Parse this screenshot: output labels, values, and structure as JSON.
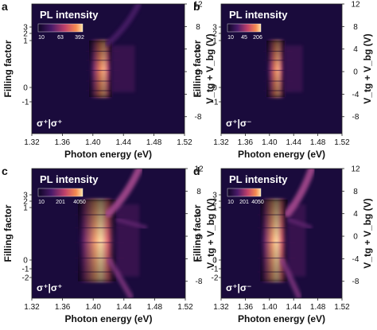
{
  "chart_data": [
    {
      "type": "heatmap",
      "panel_label": "a",
      "title": "PL intensity",
      "colorbar_ticks": [
        "10",
        "63",
        "392"
      ],
      "polarization": "σ⁺|σ⁺",
      "xlabel": "Photon energy (eV)",
      "xticks": [
        "1.32",
        "1.36",
        "1.40",
        "1.44",
        "1.48",
        "1.52"
      ],
      "xlim": [
        1.32,
        1.52
      ],
      "ylabel_left": "Filling factor",
      "yticks_left": [
        "3",
        "2",
        "1",
        "0",
        "-1"
      ],
      "ylabel_right": "V_tg + V_bg (V)",
      "yticks_right": [
        "12",
        "8",
        "4",
        "0",
        "-4",
        "-8"
      ],
      "ylim_right": [
        -11,
        12
      ],
      "features": [
        {
          "label": "bright emission band",
          "x_range": [
            1.395,
            1.425
          ],
          "v_range": [
            -4.5,
            5.5
          ],
          "peak_x": 1.412
        },
        {
          "label": "faint diagonal feature",
          "x_range": [
            1.42,
            1.46
          ],
          "v_range": [
            5,
            12
          ]
        }
      ]
    },
    {
      "type": "heatmap",
      "panel_label": "b",
      "title": "PL intensity",
      "colorbar_ticks": [
        "10",
        "45",
        "206"
      ],
      "polarization": "σ⁺|σ⁻",
      "xlabel": "Photon energy (eV)",
      "xticks": [
        "1.32",
        "1.36",
        "1.40",
        "1.44",
        "1.48",
        "1.52"
      ],
      "xlim": [
        1.32,
        1.52
      ],
      "ylabel_left": "Filling factor",
      "yticks_left": [
        "3",
        "2",
        "1",
        "0",
        "-1"
      ],
      "ylabel_right": "V_tg + V_bg (V)",
      "yticks_right": [
        "12",
        "8",
        "4",
        "0",
        "-4",
        "-8"
      ],
      "ylim_right": [
        -11,
        12
      ],
      "features": [
        {
          "label": "bright emission band",
          "x_range": [
            1.395,
            1.425
          ],
          "v_range": [
            -4.5,
            5.5
          ],
          "peak_x": 1.412
        }
      ]
    },
    {
      "type": "heatmap",
      "panel_label": "c",
      "title": "PL intensity",
      "colorbar_ticks": [
        "10",
        "201",
        "4050"
      ],
      "polarization": "σ⁺|σ⁺",
      "xlabel": "Photon energy (eV)",
      "xticks": [
        "1.32",
        "1.36",
        "1.40",
        "1.44",
        "1.48",
        "1.52"
      ],
      "xlim": [
        1.32,
        1.52
      ],
      "ylabel_left": "Filling factor",
      "yticks_left": [
        "3",
        "2",
        "1",
        "0",
        "-1",
        "-2"
      ],
      "ylabel_right": "V_tg + V_bg (V)",
      "yticks_right": [
        "12",
        "8",
        "4",
        "0",
        "-4",
        "-8"
      ],
      "ylim_right": [
        -11,
        12
      ],
      "features": [
        {
          "label": "bright emission band",
          "x_range": [
            1.38,
            1.43
          ],
          "v_range": [
            -8,
            6.5
          ],
          "peak_x": 1.405
        },
        {
          "label": "diagonal branch",
          "x_range": [
            1.42,
            1.46
          ],
          "v_range": [
            4,
            12
          ]
        }
      ]
    },
    {
      "type": "heatmap",
      "panel_label": "d",
      "title": "PL intensity",
      "colorbar_ticks": [
        "10",
        "201",
        "4050"
      ],
      "polarization": "σ⁺|σ⁻",
      "xlabel": "Photon energy (eV)",
      "xticks": [
        "1.32",
        "1.36",
        "1.40",
        "1.44",
        "1.48",
        "1.52"
      ],
      "xlim": [
        1.32,
        1.52
      ],
      "ylabel_left": "Filling factor",
      "yticks_left": [
        "3",
        "2",
        "1",
        "0",
        "-1",
        "-2"
      ],
      "ylabel_right": "V_tg + V_bg (V)",
      "yticks_right": [
        "12",
        "8",
        "4",
        "0",
        "-4",
        "-8"
      ],
      "ylim_right": [
        -11,
        12
      ],
      "features": [
        {
          "label": "bright emission band",
          "x_range": [
            1.385,
            1.43
          ],
          "v_range": [
            -8,
            6.5
          ],
          "peak_x": 1.41
        },
        {
          "label": "diagonal branch",
          "x_range": [
            1.43,
            1.47
          ],
          "v_range": [
            4,
            12
          ]
        }
      ]
    }
  ],
  "colors": {
    "background": "#1a0b3c",
    "mid": "#8a2a6a",
    "high": "#f07a4a",
    "peak": "#fde2a8"
  }
}
